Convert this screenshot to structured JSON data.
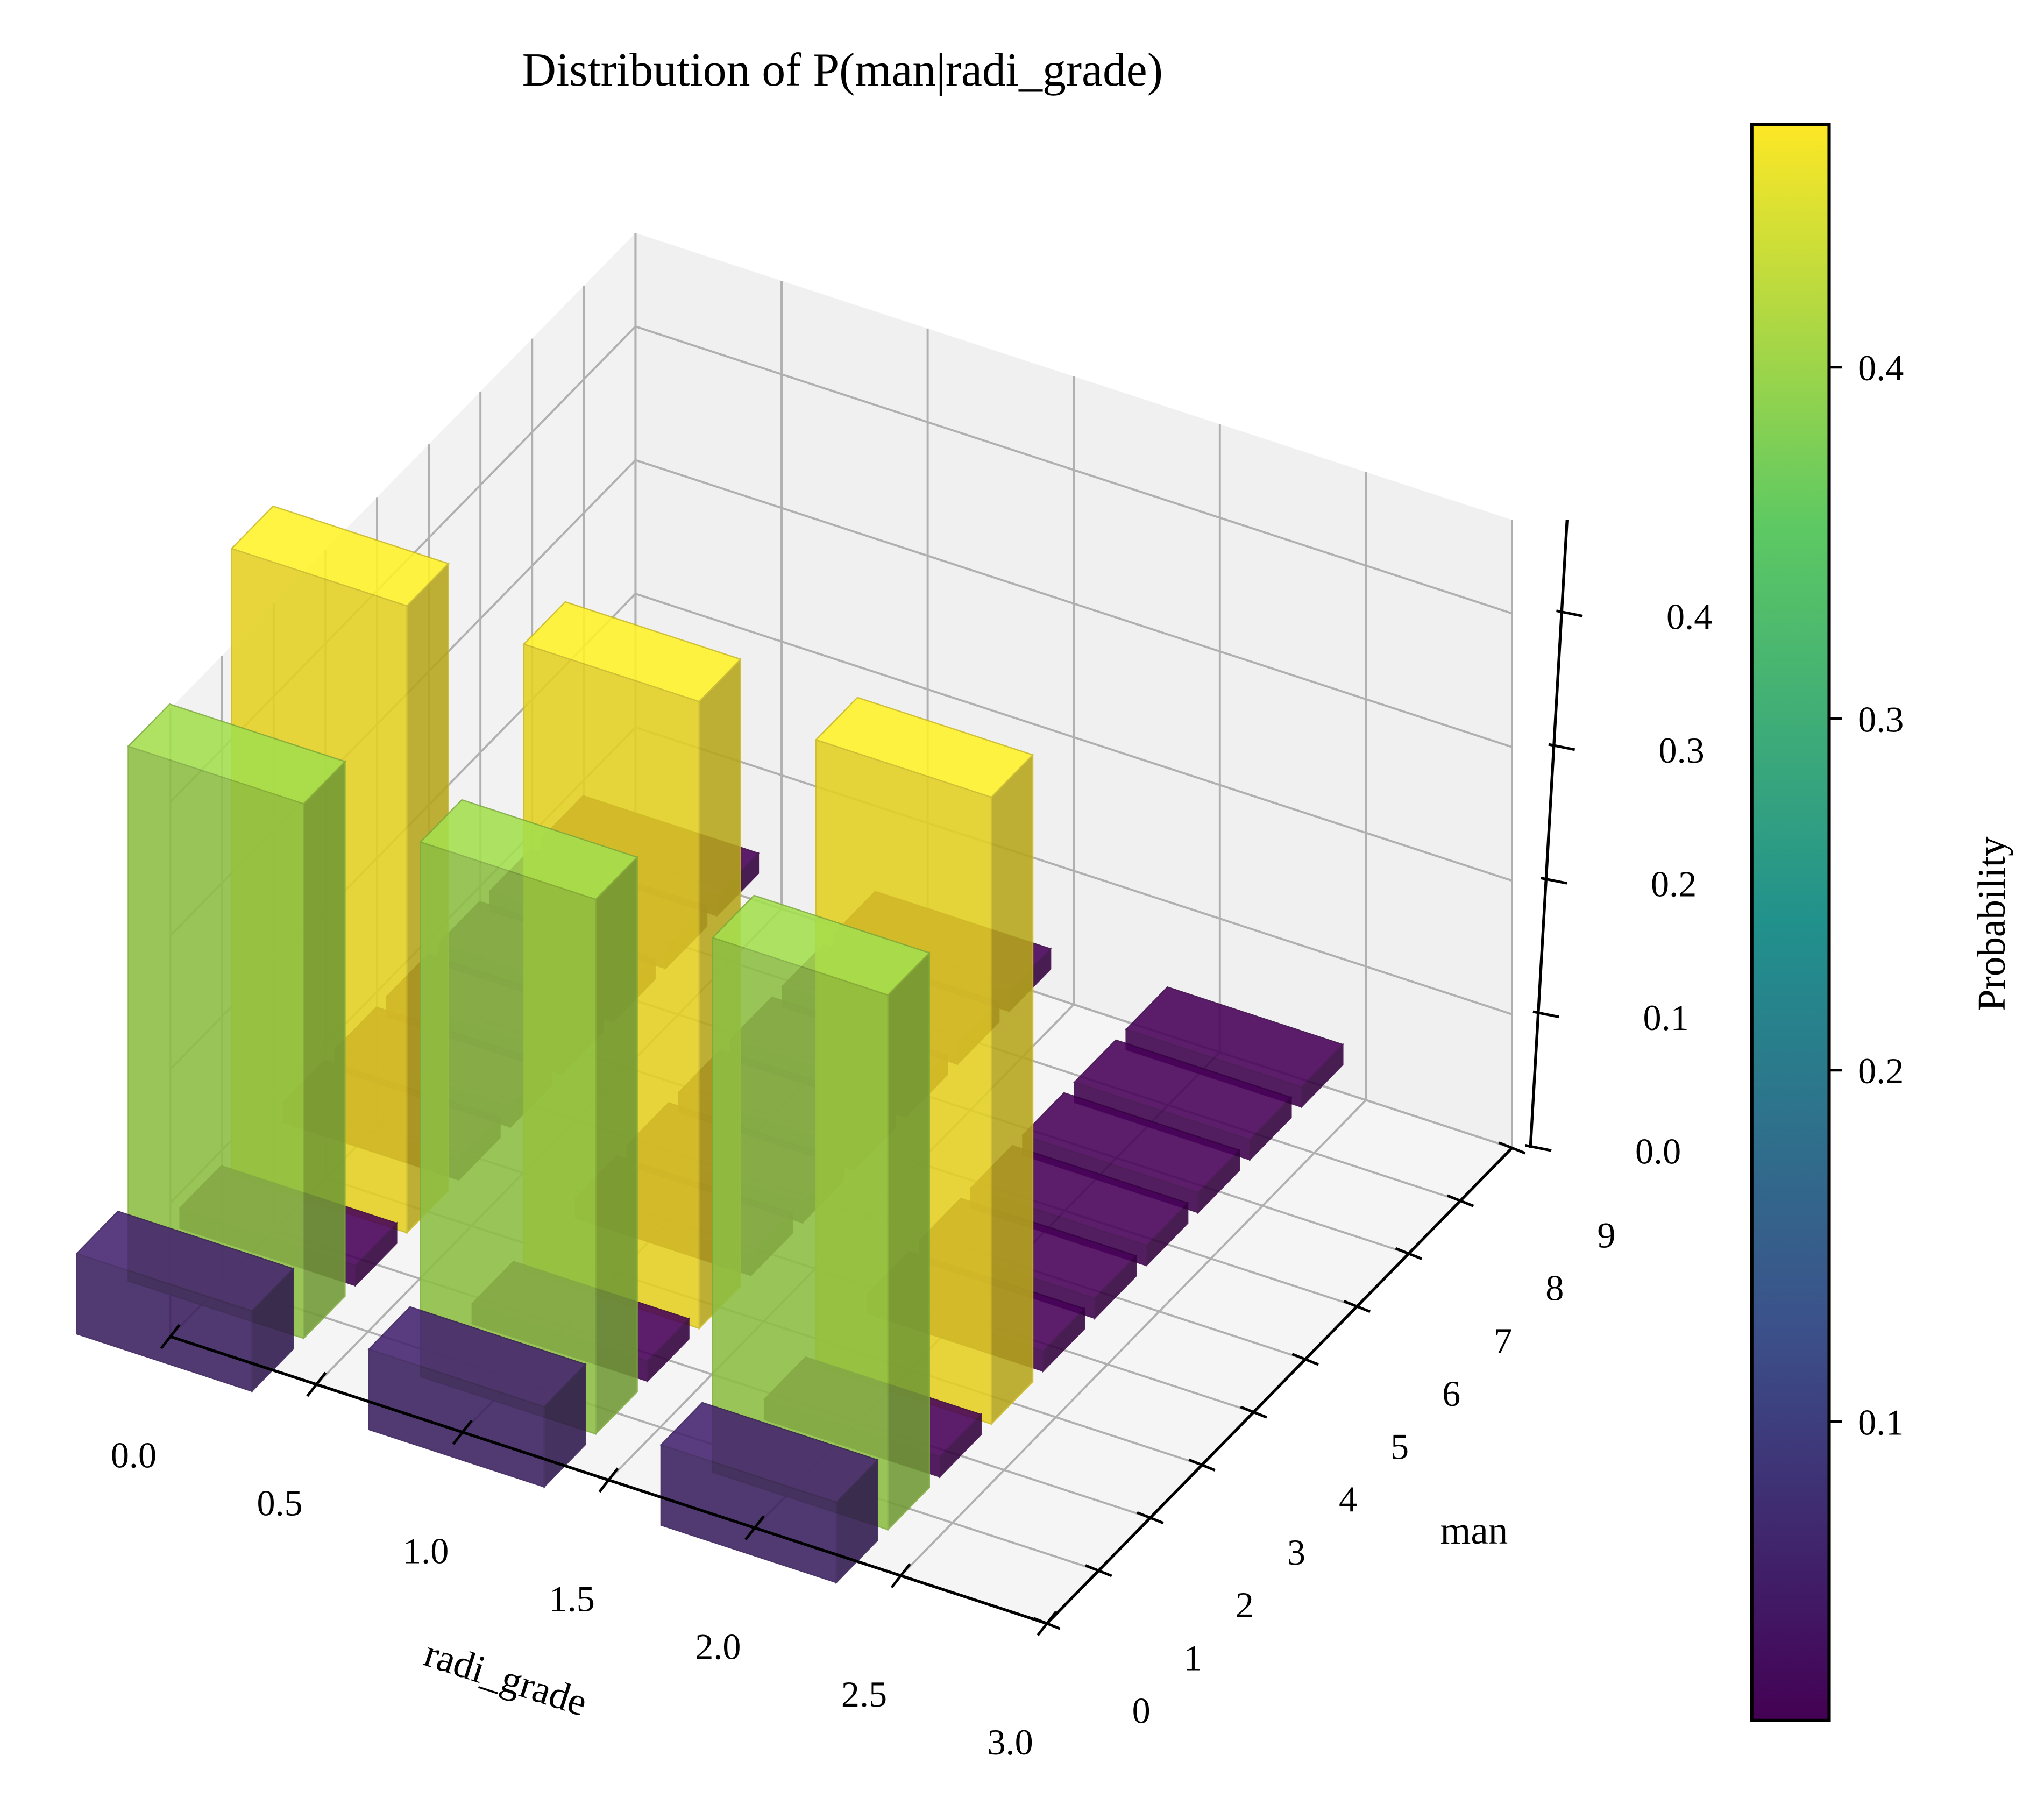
{
  "chart_data": {
    "type": "bar3d",
    "title": "Distribution of P(man|radi_grade)",
    "xlabel": "radi_grade",
    "ylabel": "man",
    "colorbar_label": "Probability",
    "x": [
      0,
      1,
      2
    ],
    "y": [
      0,
      1,
      2,
      3,
      4,
      5,
      6,
      7,
      8,
      9
    ],
    "values": [
      [
        0.06,
        0.4,
        0.015,
        0.469,
        0.015,
        0.015,
        0.015,
        0.015,
        0.015,
        0.015
      ],
      [
        0.06,
        0.4,
        0.015,
        0.469,
        0.015,
        0.015,
        0.015,
        0.015,
        0.015,
        0.015
      ],
      [
        0.06,
        0.4,
        0.015,
        0.469,
        0.015,
        0.015,
        0.015,
        0.015,
        0.015,
        0.015
      ]
    ],
    "xlim": [
      0,
      3
    ],
    "ylim": [
      0,
      9
    ],
    "zlim": [
      0,
      0.47
    ],
    "xticks": [
      {
        "value": 0,
        "label": "0.0"
      },
      0.5,
      {
        "value": 1,
        "label": "1.0"
      },
      1.5,
      {
        "value": 2,
        "label": "2.0"
      },
      2.5,
      {
        "value": 3,
        "label": "3.0"
      }
    ],
    "yticks": [
      0,
      1,
      2,
      3,
      4,
      5,
      6,
      7,
      8,
      9
    ],
    "zticks": [
      {
        "value": 0,
        "label": "0.0"
      },
      0.1,
      0.2,
      0.3,
      0.4
    ],
    "colormap": "viridis",
    "colorbar_lim": [
      0.015,
      0.469
    ],
    "colorbar_ticks": [
      0.1,
      0.2,
      0.3,
      0.4
    ],
    "grid": true
  }
}
